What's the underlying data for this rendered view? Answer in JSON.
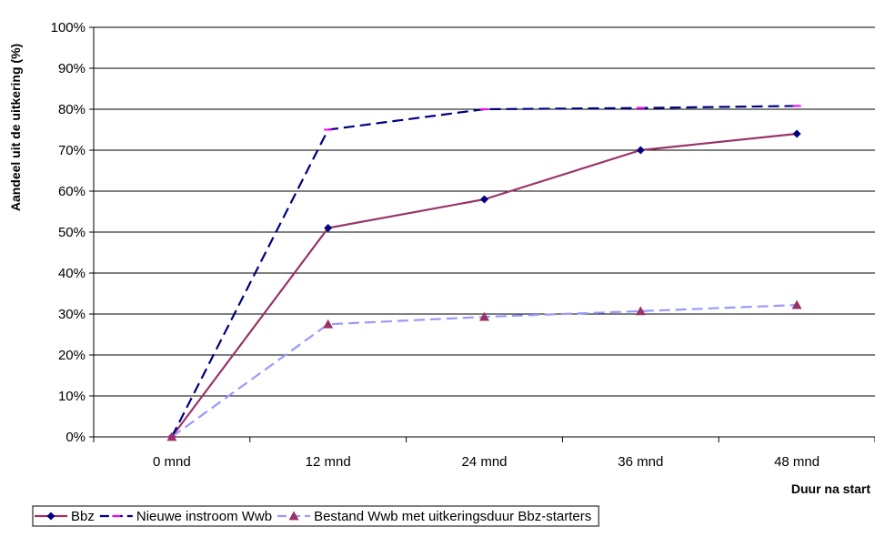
{
  "chart_data": {
    "type": "line",
    "categories": [
      "0 mnd",
      "12 mnd",
      "24 mnd",
      "36 mnd",
      "48 mnd"
    ],
    "ylabel": "Aandeel uit de uitkering (%)",
    "xlabel": "Duur na start",
    "ylim": [
      0,
      100
    ],
    "yticks": [
      "0%",
      "10%",
      "20%",
      "30%",
      "40%",
      "50%",
      "60%",
      "70%",
      "80%",
      "90%",
      "100%"
    ],
    "grid": "horizontal",
    "legend_position": "bottom-left",
    "series": [
      {
        "name": "Bbz",
        "x": [
          0,
          12,
          24,
          36,
          48
        ],
        "values": [
          0,
          51,
          58,
          70,
          74
        ],
        "color": "#993366",
        "marker": "diamond",
        "marker_color": "#000080",
        "line_style": "solid"
      },
      {
        "name": "Nieuwe instroom Wwb",
        "x": [
          0,
          12,
          24,
          36,
          48
        ],
        "values": [
          0,
          75,
          80,
          80.3,
          80.8
        ],
        "color": "#000080",
        "marker": "dash",
        "marker_color": "#FF00FF",
        "line_style": "dashed"
      },
      {
        "name": "Bestand Wwb met uitkeringsduur Bbz-starters",
        "x": [
          0,
          12,
          24,
          36,
          48
        ],
        "values": [
          0,
          27.5,
          29.3,
          30.7,
          32.2
        ],
        "color": "#9999FF",
        "marker": "triangle",
        "marker_color": "#993366",
        "line_style": "dashed"
      }
    ]
  }
}
